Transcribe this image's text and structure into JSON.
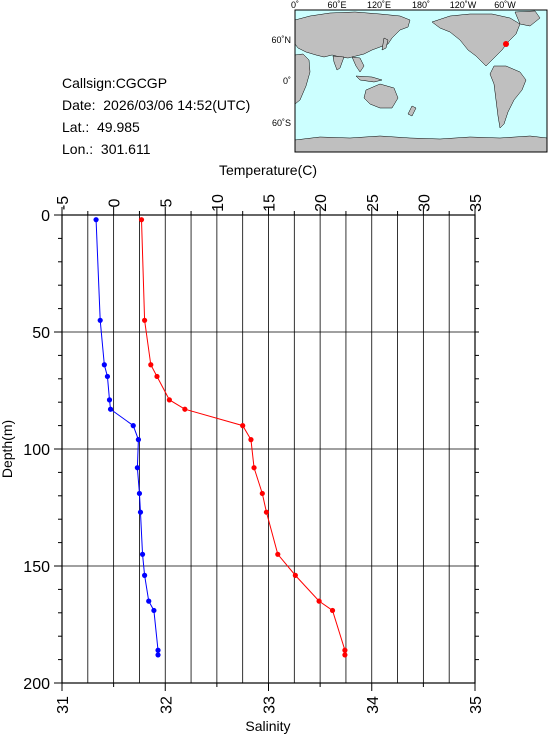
{
  "info": {
    "callsign": "Callsign:CGCGP",
    "date": "Date:  2026/03/06 14:52(UTC)",
    "lat": "Lat.:  49.985",
    "lon": "Lon.:  301.611"
  },
  "map": {
    "top_ticks": [
      "0˚",
      "60˚E",
      "120˚E",
      "180˚",
      "120˚W",
      "60˚W"
    ],
    "left_ticks": [
      "60˚N",
      "0˚",
      "60˚S"
    ],
    "ocean_color": "#ccffff",
    "land_color": "#bfbfbf",
    "marker_color": "#ff0000"
  },
  "chart_data": {
    "type": "line",
    "xlabel_top": "Temperature(C)",
    "xlabel_bottom": "Salinity",
    "ylabel": "Depth(m)",
    "temp_ticks": [
      "-5",
      "0",
      "5",
      "10",
      "15",
      "20",
      "25",
      "30",
      "35"
    ],
    "sal_ticks": [
      "31",
      "32",
      "33",
      "34",
      "35"
    ],
    "depth_ticks": [
      "0",
      "50",
      "100",
      "150",
      "200"
    ],
    "temp_lim": [
      -5,
      35
    ],
    "sal_lim": [
      31,
      35
    ],
    "depth_lim": [
      0,
      200
    ],
    "series": [
      {
        "axis": "temperature",
        "color": "#ff0000",
        "depth": [
          2,
          45,
          64,
          69,
          79,
          83,
          90,
          96,
          108,
          119,
          127,
          145,
          154,
          165,
          169,
          186,
          188
        ],
        "values": [
          2.7,
          3.0,
          3.6,
          4.2,
          5.4,
          6.9,
          12.5,
          13.3,
          13.6,
          14.4,
          14.8,
          15.9,
          17.6,
          19.9,
          21.2,
          22.4,
          22.4
        ]
      },
      {
        "axis": "salinity",
        "color": "#0000ff",
        "depth": [
          2,
          45,
          64,
          69,
          79,
          83,
          90,
          96,
          108,
          119,
          127,
          145,
          154,
          165,
          169,
          186,
          188
        ],
        "values": [
          31.33,
          31.37,
          31.41,
          31.44,
          31.46,
          31.47,
          31.69,
          31.74,
          31.73,
          31.75,
          31.76,
          31.78,
          31.8,
          31.84,
          31.89,
          31.93,
          31.93
        ]
      }
    ]
  }
}
